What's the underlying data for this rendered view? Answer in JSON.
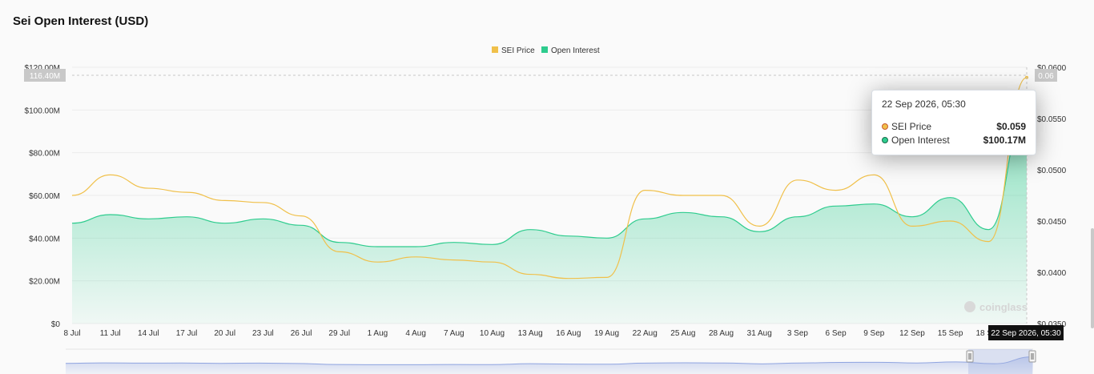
{
  "title": "Sei Open Interest (USD)",
  "legend": [
    {
      "label": "SEI Price",
      "color": "#f0c04a"
    },
    {
      "label": "Open Interest",
      "color": "#2ecc8e"
    }
  ],
  "tooltip": {
    "date": "22 Sep 2026, 05:30",
    "rows": [
      {
        "label": "SEI Price",
        "value": "$0.059",
        "color": "#f0c04a"
      },
      {
        "label": "Open Interest",
        "value": "$100.17M",
        "color": "#2ecc8e"
      }
    ]
  },
  "crosshair": {
    "left_label": "116.40M",
    "right_label": "0.06",
    "x_label": "22 Sep 2026, 05:30"
  },
  "watermark": "coinglass",
  "chart_data": {
    "type": "area",
    "x": [
      "8 Jul",
      "11 Jul",
      "14 Jul",
      "17 Jul",
      "20 Jul",
      "23 Jul",
      "26 Jul",
      "29 Jul",
      "1 Aug",
      "4 Aug",
      "7 Aug",
      "10 Aug",
      "13 Aug",
      "16 Aug",
      "19 Aug",
      "22 Aug",
      "25 Aug",
      "28 Aug",
      "31 Aug",
      "3 Sep",
      "6 Sep",
      "9 Sep",
      "12 Sep",
      "15 Sep",
      "18 Sep",
      "22 Sep"
    ],
    "y_left": {
      "ticks": [
        "$0",
        "$20.00M",
        "$40.00M",
        "$60.00M",
        "$80.00M",
        "$100.00M",
        "$120.00M"
      ],
      "range": [
        0,
        120
      ]
    },
    "y_right": {
      "ticks": [
        "$0.0350",
        "$0.0400",
        "$0.0450",
        "$0.0500",
        "$0.0550",
        "$0.0600"
      ],
      "range": [
        0.035,
        0.06
      ]
    },
    "series": [
      {
        "name": "Open Interest",
        "axis": "left",
        "values": [
          47,
          51,
          49,
          50,
          47,
          49,
          46,
          38,
          36,
          36,
          38,
          37,
          44,
          41,
          40,
          49,
          52,
          50,
          43,
          50,
          55,
          56,
          50,
          59,
          44,
          100.17
        ]
      },
      {
        "name": "SEI Price",
        "axis": "right",
        "values": [
          0.0475,
          0.0495,
          0.0482,
          0.0478,
          0.047,
          0.0468,
          0.0455,
          0.042,
          0.041,
          0.0415,
          0.0412,
          0.041,
          0.0398,
          0.0394,
          0.0395,
          0.048,
          0.0475,
          0.0475,
          0.0445,
          0.049,
          0.048,
          0.0495,
          0.0445,
          0.045,
          0.043,
          0.059
        ]
      }
    ]
  }
}
